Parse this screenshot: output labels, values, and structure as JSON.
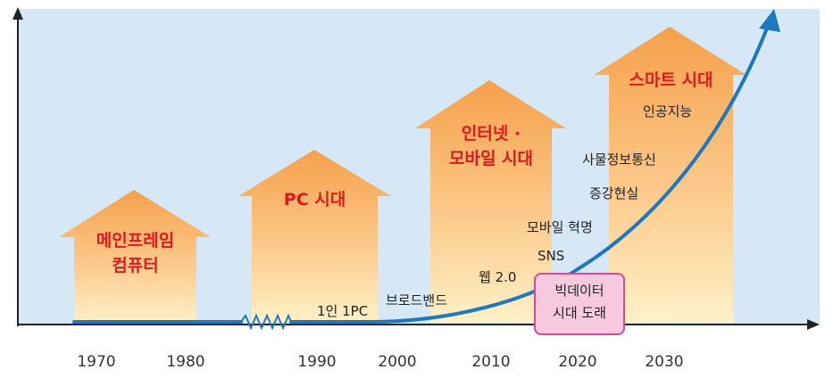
{
  "eras": [
    {
      "label_line1": "메인프레임",
      "label_line2": "컴퓨터"
    },
    {
      "label_line1": "PC 시대",
      "label_line2": ""
    },
    {
      "label_line1": "인터넷 ·",
      "label_line2": "모바일 시대"
    },
    {
      "label_line1": "스마트 시대",
      "label_line2": ""
    }
  ],
  "technologies": [
    "1인 1PC",
    "브로드밴드",
    "웹 2.0",
    "SNS",
    "모바일 혁명",
    "증강현실",
    "사물정보통신",
    "인공지능"
  ],
  "highlight": {
    "line1": "빅데이터",
    "line2": "시대 도래"
  },
  "years": [
    "1970",
    "1980",
    "1990",
    "2000",
    "2010",
    "2020",
    "2030"
  ],
  "colors": {
    "background": "#d6e8f5",
    "arrow_gradient_top": "#f6a04a",
    "arrow_gradient_bottom": "#fff1c8",
    "curve": "#1e78c0",
    "label_red": "#e0191c",
    "highlight_fill": "#f6c9de",
    "highlight_border": "#d04d93"
  }
}
